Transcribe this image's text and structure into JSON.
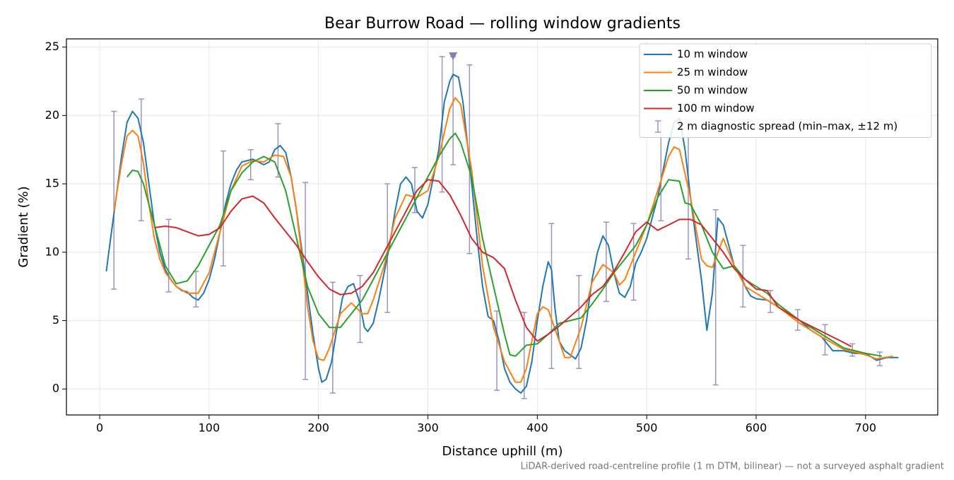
{
  "chart_data": {
    "type": "line",
    "title": "Bear Burrow Road — rolling window gradients",
    "x_label": "Distance uphill (m)",
    "y_label": "Gradient (%)",
    "footnote": "LiDAR-derived road-centreline profile (1 m DTM, bilinear) — not a surveyed asphalt gradient",
    "xlim": [
      -30.4,
      766
    ],
    "ylim": [
      -1.9,
      25.6
    ],
    "xticks": [
      0,
      100,
      200,
      300,
      400,
      500,
      600,
      700
    ],
    "yticks": [
      0,
      5,
      10,
      15,
      20,
      25
    ],
    "grid": true,
    "legend": "upper right",
    "series": [
      {
        "name": "10 m window",
        "color": "#1f77b4",
        "x": [
          6,
          10,
          15,
          20,
          25,
          30,
          35,
          40,
          45,
          50,
          55,
          60,
          65,
          70,
          75,
          80,
          85,
          90,
          95,
          100,
          105,
          110,
          115,
          120,
          125,
          130,
          140,
          150,
          155,
          160,
          165,
          170,
          175,
          180,
          185,
          190,
          195,
          200,
          203,
          207,
          212,
          217,
          222,
          227,
          232,
          237,
          242,
          245,
          250,
          255,
          260,
          265,
          270,
          275,
          280,
          285,
          290,
          295,
          300,
          305,
          310,
          315,
          320,
          323,
          328,
          332,
          336,
          340,
          345,
          350,
          355,
          360,
          365,
          370,
          375,
          380,
          385,
          390,
          395,
          400,
          405,
          410,
          413,
          416,
          420,
          425,
          430,
          435,
          440,
          445,
          450,
          455,
          460,
          465,
          470,
          475,
          480,
          485,
          490,
          495,
          500,
          505,
          510,
          515,
          520,
          525,
          530,
          535,
          540,
          545,
          550,
          555,
          560,
          565,
          570,
          575,
          580,
          585,
          590,
          595,
          600,
          610,
          620,
          630,
          640,
          650,
          660,
          670,
          680,
          690,
          700,
          710,
          720,
          730
        ],
        "values": [
          8.6,
          11,
          14,
          17,
          19.5,
          20.3,
          19.8,
          18,
          15,
          12,
          10,
          8.7,
          8,
          7.5,
          7.2,
          7.1,
          6.7,
          6.5,
          7,
          8,
          9.5,
          11.5,
          13.5,
          15,
          16,
          16.6,
          16.8,
          16.4,
          16.6,
          17.5,
          17.8,
          17.3,
          15.5,
          13,
          10,
          7,
          4,
          1.5,
          0.5,
          0.7,
          2,
          4.5,
          6.7,
          7.5,
          7.7,
          6.5,
          4.5,
          4.2,
          4.8,
          6.5,
          8.5,
          10.5,
          13,
          15,
          15.5,
          15,
          13,
          12.5,
          13.5,
          15.5,
          17.5,
          21,
          22.5,
          23,
          22.8,
          21,
          18,
          15,
          11,
          7.5,
          5.3,
          5,
          3.5,
          1.5,
          0.5,
          0,
          -0.3,
          0.2,
          2,
          5,
          7.5,
          9.3,
          8.7,
          6,
          3.5,
          2.8,
          2.5,
          2.2,
          3,
          5,
          8,
          10,
          11.2,
          10.5,
          8.5,
          7,
          6.7,
          7.5,
          9.2,
          10,
          11,
          12.5,
          14,
          16,
          18,
          19.5,
          19.8,
          17.5,
          14,
          11,
          8,
          4.3,
          7,
          12.5,
          12,
          10.5,
          9,
          8.5,
          7.5,
          6.8,
          6.6,
          6.5,
          6,
          5.5,
          5,
          4.3,
          3.8,
          2.8,
          2.8,
          2.6,
          2.6,
          2.1,
          2.3,
          2.3
        ]
      },
      {
        "name": "25 m window",
        "color": "#ff7f0e",
        "x": [
          13,
          20,
          25,
          30,
          35,
          40,
          45,
          50,
          55,
          60,
          70,
          80,
          90,
          100,
          110,
          120,
          130,
          140,
          150,
          160,
          168,
          175,
          180,
          185,
          190,
          195,
          200,
          205,
          210,
          220,
          230,
          240,
          245,
          250,
          260,
          270,
          280,
          290,
          300,
          310,
          320,
          325,
          330,
          340,
          350,
          360,
          370,
          380,
          385,
          390,
          400,
          405,
          410,
          420,
          425,
          430,
          440,
          450,
          460,
          470,
          475,
          480,
          490,
          500,
          510,
          520,
          525,
          530,
          540,
          550,
          555,
          560,
          570,
          575,
          580,
          590,
          600,
          610,
          620,
          640,
          660,
          680,
          700,
          710,
          725
        ],
        "values": [
          13,
          16.5,
          18.5,
          18.9,
          18.5,
          16.5,
          13.5,
          11,
          9.5,
          8.5,
          7.5,
          7,
          7,
          8.5,
          11.5,
          14.5,
          16.3,
          16.7,
          16.6,
          17.1,
          17,
          15.5,
          13,
          9.5,
          6,
          3.5,
          2.2,
          2.1,
          3,
          5.5,
          6.3,
          5.5,
          5.5,
          6.5,
          9,
          12.5,
          14.2,
          14,
          14.5,
          17,
          20.5,
          21.3,
          20.8,
          16,
          9,
          4.5,
          2,
          0.5,
          0.5,
          1.5,
          5.5,
          6,
          5.8,
          3.5,
          2.3,
          2.3,
          4.5,
          7.8,
          9.1,
          8.5,
          7.6,
          8,
          10,
          12,
          14.5,
          17,
          17.7,
          17.5,
          14,
          9.5,
          9,
          8.9,
          11,
          10,
          9,
          7.5,
          7,
          6.5,
          6,
          4.8,
          3.8,
          2.9,
          2.5,
          2.2,
          2.4
        ]
      },
      {
        "name": "50 m window",
        "color": "#2ca02c",
        "x": [
          25,
          30,
          35,
          40,
          50,
          60,
          70,
          80,
          90,
          100,
          110,
          120,
          130,
          140,
          150,
          160,
          170,
          180,
          190,
          200,
          210,
          220,
          230,
          240,
          250,
          260,
          270,
          280,
          290,
          300,
          310,
          320,
          325,
          330,
          340,
          350,
          360,
          370,
          375,
          380,
          390,
          400,
          410,
          420,
          430,
          440,
          450,
          460,
          470,
          480,
          490,
          500,
          510,
          520,
          530,
          535,
          540,
          550,
          560,
          570,
          580,
          590,
          600,
          610,
          620,
          640,
          660,
          680,
          700,
          715
        ],
        "values": [
          15.5,
          16,
          15.9,
          15,
          12,
          9,
          7.7,
          7.9,
          9,
          10.5,
          12,
          14.5,
          15.8,
          16.6,
          17,
          16.6,
          14.5,
          11,
          7.5,
          5.5,
          4.5,
          4.5,
          5.5,
          6.5,
          8,
          9.5,
          11,
          12.5,
          14,
          15.5,
          17,
          18.3,
          18.7,
          18,
          15.5,
          11,
          7.5,
          4,
          2.5,
          2.4,
          3.2,
          3.3,
          4,
          4.8,
          5,
          5.2,
          6.2,
          7.3,
          8.5,
          9.5,
          10.5,
          12,
          14,
          15.3,
          15.2,
          13.6,
          13.5,
          12,
          10,
          8.8,
          9,
          8,
          7.5,
          7,
          6.2,
          5,
          4,
          3,
          2.6,
          2.4
        ]
      },
      {
        "name": "100 m window",
        "color": "#d62728",
        "x": [
          50,
          60,
          70,
          80,
          90,
          100,
          110,
          120,
          130,
          140,
          150,
          160,
          170,
          180,
          190,
          200,
          210,
          220,
          230,
          240,
          250,
          260,
          270,
          280,
          290,
          300,
          310,
          320,
          330,
          340,
          350,
          360,
          370,
          380,
          390,
          400,
          410,
          420,
          430,
          440,
          450,
          460,
          470,
          480,
          490,
          500,
          510,
          520,
          530,
          540,
          550,
          560,
          570,
          580,
          590,
          600,
          610,
          620,
          640,
          660,
          680,
          687
        ],
        "values": [
          11.8,
          11.9,
          11.8,
          11.5,
          11.2,
          11.3,
          11.8,
          13,
          13.9,
          14.1,
          13.6,
          12.5,
          11.5,
          10.5,
          9.3,
          8.2,
          7.3,
          6.9,
          7,
          7.5,
          8.5,
          10,
          11.5,
          13,
          14.5,
          15.3,
          15.2,
          14.2,
          12.7,
          11,
          10,
          9.6,
          8.8,
          6.5,
          4.5,
          3.5,
          4,
          4.6,
          5.3,
          6,
          6.9,
          7.5,
          8.6,
          10,
          11.5,
          12.2,
          11.6,
          12,
          12.4,
          12.4,
          12,
          11,
          10,
          8.8,
          8,
          7.3,
          7.2,
          6,
          5,
          4.2,
          3.4,
          3.1
        ]
      }
    ],
    "errorbars": {
      "name": "2 m diagnostic spread (min–max, ±12 m)",
      "color": "#9d93bd",
      "x": [
        13,
        38,
        63,
        88,
        113,
        138,
        163,
        188,
        213,
        238,
        263,
        288,
        313,
        323,
        338,
        363,
        388,
        413,
        438,
        463,
        488,
        513,
        538,
        563,
        588,
        613,
        638,
        663,
        688,
        713
      ],
      "low": [
        7.3,
        12.3,
        7.1,
        6.0,
        9.0,
        15.3,
        15.5,
        0.7,
        -0.3,
        3.4,
        5.6,
        12.9,
        14.4,
        16.4,
        9.9,
        -0.1,
        -0.7,
        1.5,
        1.5,
        6.4,
        6.5,
        12.3,
        9.5,
        0.3,
        6.0,
        5.6,
        4.3,
        2.5,
        2.4,
        1.7
      ],
      "high": [
        20.3,
        21.2,
        12.4,
        8.6,
        17.4,
        17.5,
        19.4,
        15.1,
        7.8,
        8.3,
        15.0,
        16.2,
        24.3,
        24.3,
        23.7,
        5.7,
        5.6,
        12.1,
        8.3,
        12.2,
        12.1,
        19.6,
        19.5,
        13.1,
        10.5,
        7.2,
        5.8,
        4.7,
        3.3,
        2.7
      ]
    },
    "peak_marker": {
      "x": 323,
      "y": 24.3,
      "color": "#8c7bb0"
    }
  }
}
